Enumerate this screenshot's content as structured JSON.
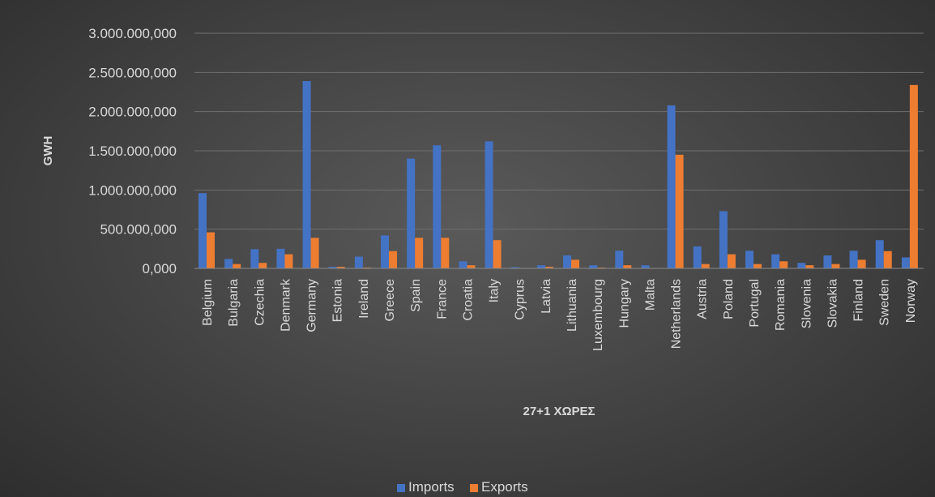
{
  "chart_data": {
    "type": "bar",
    "title": "",
    "xlabel": "27+1 ΧΩΡΕΣ",
    "ylabel": "GWH",
    "ylim": [
      0,
      3000000
    ],
    "y_ticks": [
      0,
      500000,
      1000000,
      1500000,
      2000000,
      2500000,
      3000000
    ],
    "y_tick_labels": [
      "0,000",
      "500.000,000",
      "1.000.000,000",
      "1.500.000,000",
      "2.000.000,000",
      "2.500.000,000",
      "3.000.000,000"
    ],
    "grid": true,
    "legend_position": "bottom",
    "categories": [
      "Belgium",
      "Bulgaria",
      "Czechia",
      "Denmark",
      "Germany",
      "Estonia",
      "Ireland",
      "Greece",
      "Spain",
      "France",
      "Croatia",
      "Italy",
      "Cyprus",
      "Latvia",
      "Lithuania",
      "Luxembourg",
      "Hungary",
      "Malta",
      "Netherlands",
      "Austria",
      "Poland",
      "Portugal",
      "Romania",
      "Slovenia",
      "Slovakia",
      "Finland",
      "Sweden",
      "Norway"
    ],
    "series": [
      {
        "name": "Imports",
        "color": "#4472c4",
        "values": [
          960000,
          120000,
          245000,
          250000,
          2390000,
          20000,
          150000,
          420000,
          1400000,
          1570000,
          90000,
          1620000,
          15000,
          40000,
          165000,
          40000,
          225000,
          40000,
          2080000,
          280000,
          730000,
          225000,
          180000,
          70000,
          165000,
          225000,
          360000,
          140000
        ]
      },
      {
        "name": "Exports",
        "color": "#ed7d31",
        "values": [
          460000,
          55000,
          70000,
          180000,
          390000,
          20000,
          10000,
          220000,
          390000,
          390000,
          40000,
          360000,
          5000,
          20000,
          110000,
          10000,
          40000,
          5000,
          1450000,
          55000,
          180000,
          55000,
          90000,
          40000,
          55000,
          110000,
          220000,
          2340000
        ]
      }
    ]
  }
}
